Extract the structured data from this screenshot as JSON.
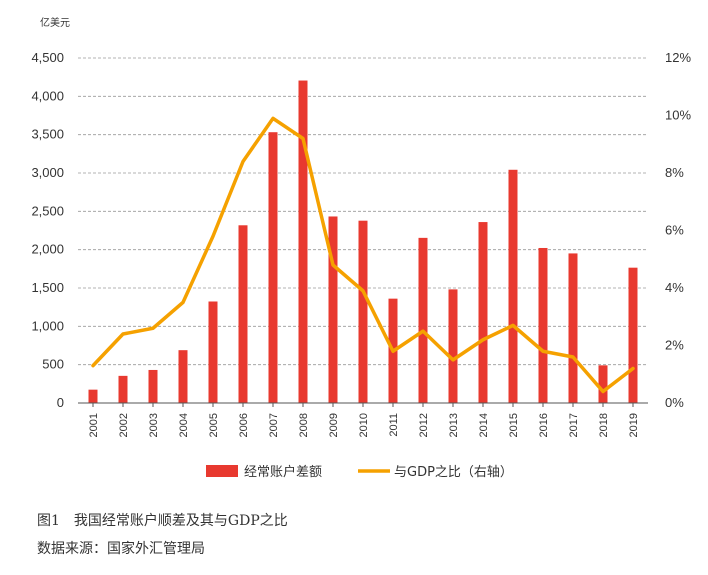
{
  "chart_data": {
    "type": "bar",
    "left_unit": "亿美元",
    "categories": [
      "2001",
      "2002",
      "2003",
      "2004",
      "2005",
      "2006",
      "2007",
      "2008",
      "2009",
      "2010",
      "2011",
      "2012",
      "2013",
      "2014",
      "2015",
      "2016",
      "2017",
      "2018",
      "2019"
    ],
    "series": [
      {
        "name": "经常账户差额",
        "type": "bar",
        "axis": "left",
        "color": "#e8392f",
        "values": [
          174,
          354,
          431,
          689,
          1324,
          2318,
          3532,
          4206,
          2433,
          2378,
          1361,
          2154,
          1482,
          2360,
          3042,
          2022,
          1951,
          491,
          1765
        ]
      },
      {
        "name": "与GDP之比（右轴）",
        "type": "line",
        "axis": "right",
        "color": "#f5a100",
        "values": [
          1.3,
          2.4,
          2.6,
          3.5,
          5.8,
          8.4,
          9.9,
          9.2,
          4.8,
          3.9,
          1.8,
          2.5,
          1.5,
          2.2,
          2.7,
          1.8,
          1.6,
          0.4,
          1.2
        ]
      }
    ],
    "y_left": {
      "min": 0,
      "max": 4500,
      "step": 500
    },
    "y_right": {
      "min": 0,
      "max": 12,
      "step": 2,
      "suffix": "%"
    },
    "grid": true,
    "legend_position": "bottom"
  },
  "captions": {
    "figure": "图1　我国经常账户顺差及其与GDP之比",
    "source": "数据来源：国家外汇管理局"
  },
  "colors": {
    "bar": "#e8392f",
    "line": "#f5a100",
    "grid": "#9a9a9a",
    "axis": "#555555"
  }
}
